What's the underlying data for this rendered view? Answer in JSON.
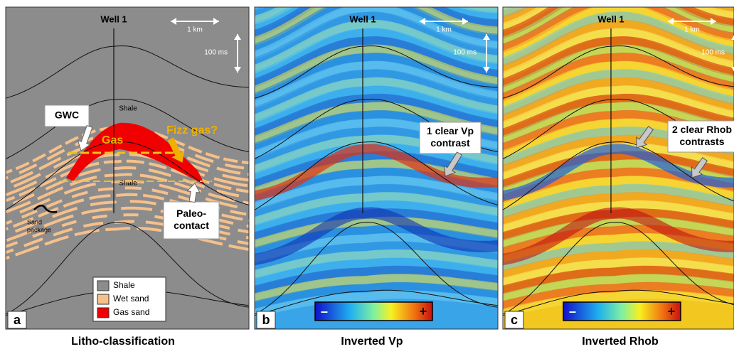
{
  "panels": [
    {
      "letter": "a",
      "title": "Litho-classification",
      "well": "Well 1",
      "scale_x": "1 km",
      "scale_t": "100 ms",
      "labels": [
        "Shale",
        "Shale"
      ],
      "gas": "Gas",
      "fizz": "Fizz gas?",
      "callouts": [
        {
          "lines": [
            "GWC"
          ]
        },
        {
          "lines": [
            "Paleo-",
            "contact"
          ]
        }
      ],
      "sand_package": [
        "Sand",
        "package"
      ],
      "legend": [
        "Shale",
        "Wet sand",
        "Gas sand"
      ]
    },
    {
      "letter": "b",
      "title": "Inverted Vp",
      "well": "Well 1",
      "scale_x": "1 km",
      "scale_t": "100 ms",
      "callouts": [
        {
          "lines": [
            "1 clear Vp",
            "contrast"
          ]
        }
      ],
      "colorbar": [
        "–",
        "+"
      ]
    },
    {
      "letter": "c",
      "title": "Inverted Rhob",
      "well": "Well 1",
      "scale_x": "1 km",
      "scale_t": "100 ms",
      "callouts": [
        {
          "lines": [
            "2 clear Rhob",
            "contrasts"
          ]
        }
      ],
      "colorbar": [
        "–",
        "+"
      ]
    }
  ]
}
